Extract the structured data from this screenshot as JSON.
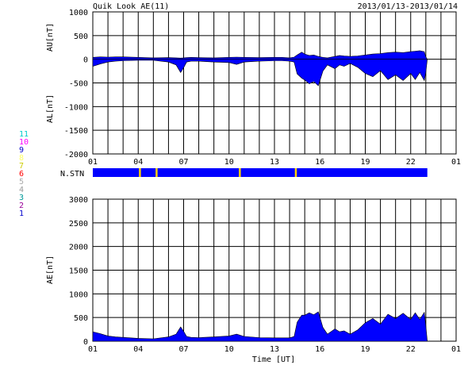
{
  "header": {
    "title": "Quik Look AE(11)",
    "date_range": "2013/01/13-2013/01/14"
  },
  "station_legend": {
    "labels": [
      "11",
      "10",
      "9",
      "8",
      "7",
      "6",
      "5",
      "4",
      "3",
      "2",
      "1"
    ],
    "colors": [
      "#00cccc",
      "#ff00ff",
      "#0000cc",
      "#ffff66",
      "#cccc00",
      "#ff0000",
      "#aaaaaa",
      "#999999",
      "#009999",
      "#990099",
      "#0000cc"
    ]
  },
  "colors": {
    "fill": "#0000ff",
    "nstn_bar": "#0000ff",
    "nstn_gap": "#ffd200",
    "grid": "#000000"
  },
  "chart_data": [
    {
      "type": "area",
      "panel": "AU/AL",
      "ylabel_top": "AU[nT]",
      "ylabel_bottom": "AL[nT]",
      "ylim": [
        -2000,
        1000
      ],
      "yticks": [
        1000,
        500,
        0,
        -500,
        -1000,
        -1500,
        -2000
      ],
      "xlim": [
        1,
        25
      ],
      "xticks": [
        "01",
        "04",
        "07",
        "10",
        "13",
        "16",
        "19",
        "22",
        "01"
      ],
      "xtick_hours": [
        1,
        4,
        7,
        10,
        13,
        16,
        19,
        22,
        25
      ],
      "grid": true,
      "x_hours": [
        1.0,
        1.5,
        2.0,
        2.5,
        3.0,
        4.0,
        5.0,
        6.0,
        6.5,
        6.8,
        7.0,
        7.2,
        7.5,
        8.0,
        9.0,
        10.0,
        10.5,
        11.0,
        12.0,
        13.0,
        13.5,
        14.0,
        14.3,
        14.5,
        14.8,
        15.0,
        15.3,
        15.6,
        15.9,
        16.2,
        16.5,
        17.0,
        17.3,
        17.6,
        18.0,
        18.5,
        19.0,
        19.5,
        20.0,
        20.5,
        21.0,
        21.5,
        22.0,
        22.3,
        22.6,
        22.9,
        23.0,
        23.1
      ],
      "au": [
        40,
        50,
        45,
        50,
        50,
        40,
        30,
        35,
        30,
        25,
        30,
        35,
        40,
        35,
        30,
        40,
        45,
        40,
        35,
        40,
        40,
        30,
        45,
        90,
        150,
        110,
        80,
        90,
        60,
        40,
        30,
        60,
        80,
        70,
        60,
        70,
        90,
        110,
        120,
        140,
        150,
        140,
        160,
        170,
        180,
        160,
        50,
        0
      ],
      "al": [
        -150,
        -100,
        -60,
        -40,
        -30,
        -20,
        -20,
        -60,
        -120,
        -280,
        -180,
        -60,
        -40,
        -40,
        -60,
        -70,
        -110,
        -60,
        -40,
        -30,
        -30,
        -40,
        -60,
        -310,
        -400,
        -440,
        -520,
        -470,
        -560,
        -250,
        -120,
        -200,
        -120,
        -150,
        -90,
        -170,
        -300,
        -370,
        -240,
        -430,
        -330,
        -450,
        -300,
        -430,
        -280,
        -450,
        -280,
        0
      ]
    },
    {
      "type": "area",
      "panel": "AE",
      "ylabel": "AE[nT]",
      "xlabel": "Time [UT]",
      "ylim": [
        0,
        3000
      ],
      "yticks": [
        3000,
        2500,
        2000,
        1500,
        1000,
        500,
        0
      ],
      "xlim": [
        1,
        25
      ],
      "xticks": [
        "01",
        "04",
        "07",
        "10",
        "13",
        "16",
        "19",
        "22",
        "01"
      ],
      "xtick_hours": [
        1,
        4,
        7,
        10,
        13,
        16,
        19,
        22,
        25
      ],
      "grid": true,
      "x_hours": [
        1.0,
        1.5,
        2.0,
        2.5,
        3.0,
        4.0,
        5.0,
        6.0,
        6.5,
        6.8,
        7.0,
        7.2,
        7.5,
        8.0,
        9.0,
        10.0,
        10.5,
        11.0,
        12.0,
        13.0,
        13.5,
        14.0,
        14.3,
        14.5,
        14.8,
        15.0,
        15.3,
        15.6,
        15.9,
        16.2,
        16.5,
        17.0,
        17.3,
        17.6,
        18.0,
        18.5,
        19.0,
        19.5,
        20.0,
        20.5,
        21.0,
        21.5,
        22.0,
        22.3,
        22.6,
        22.9,
        23.0,
        23.1
      ],
      "values": [
        200,
        160,
        110,
        90,
        80,
        60,
        50,
        90,
        150,
        300,
        210,
        100,
        80,
        75,
        90,
        110,
        150,
        100,
        75,
        70,
        70,
        70,
        100,
        400,
        550,
        550,
        600,
        560,
        620,
        290,
        150,
        260,
        200,
        220,
        150,
        240,
        390,
        480,
        360,
        570,
        480,
        590,
        460,
        600,
        460,
        610,
        330,
        0
      ]
    }
  ],
  "nstn": {
    "label": "N.STN",
    "gaps_hours": [
      4.1,
      5.2,
      10.7,
      14.4
    ]
  }
}
